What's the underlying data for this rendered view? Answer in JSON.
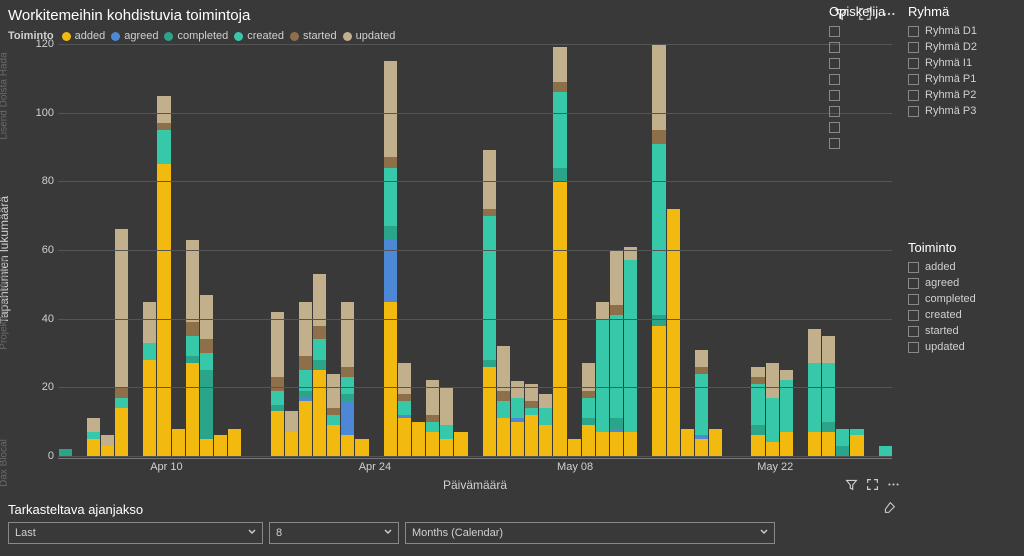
{
  "title": "Workitemeihin kohdistuvia toimintoja",
  "legend_label": "Toiminto",
  "series": [
    {
      "key": "added",
      "label": "added",
      "color": "#f2b90f"
    },
    {
      "key": "agreed",
      "label": "agreed",
      "color": "#4d88d6"
    },
    {
      "key": "completed",
      "label": "completed",
      "color": "#2aa58a"
    },
    {
      "key": "created",
      "label": "created",
      "color": "#37c8a9"
    },
    {
      "key": "started",
      "label": "started",
      "color": "#8d6f4a"
    },
    {
      "key": "updated",
      "label": "updated",
      "color": "#c2af8c"
    }
  ],
  "colors": {
    "background": "#393939",
    "grid": "#555555",
    "text": "#d0d0d0"
  },
  "y_axis": {
    "title": "Tapahtumien lukumäärä",
    "min": 0,
    "max": 120,
    "ticks": [
      0,
      20,
      40,
      60,
      80,
      100,
      120
    ]
  },
  "x_axis": {
    "title": "Päivämäärä",
    "tick_labels": [
      "Apr 10",
      "Apr 24",
      "May 08",
      "May 22"
    ],
    "tick_positions_pct": [
      13,
      38,
      62,
      86
    ]
  },
  "side_labels": [
    {
      "text": "Lisend Dolsta Hada",
      "top_pct": 12
    },
    {
      "text": "Projektoimia Mukene",
      "top_pct": 60
    },
    {
      "text": "Dax Blocal",
      "top_pct": 97
    }
  ],
  "side_markers": [
    "F",
    "I",
    "D"
  ],
  "bars": [
    {
      "added": 0,
      "agreed": 0,
      "completed": 2,
      "created": 0,
      "started": 0,
      "updated": 0
    },
    {
      "added": 0,
      "agreed": 0,
      "completed": 0,
      "created": 0,
      "started": 0,
      "updated": 0
    },
    {
      "added": 5,
      "agreed": 0,
      "completed": 0,
      "created": 2,
      "started": 0,
      "updated": 4
    },
    {
      "added": 3,
      "agreed": 0,
      "completed": 0,
      "created": 0,
      "started": 0,
      "updated": 3
    },
    {
      "added": 14,
      "agreed": 0,
      "completed": 0,
      "created": 3,
      "started": 3,
      "updated": 46
    },
    {
      "added": 0,
      "agreed": 0,
      "completed": 0,
      "created": 0,
      "started": 0,
      "updated": 0
    },
    {
      "added": 28,
      "agreed": 0,
      "completed": 0,
      "created": 5,
      "started": 0,
      "updated": 12
    },
    {
      "added": 85,
      "agreed": 0,
      "completed": 0,
      "created": 10,
      "started": 2,
      "updated": 8
    },
    {
      "added": 8,
      "agreed": 0,
      "completed": 0,
      "created": 0,
      "started": 0,
      "updated": 0
    },
    {
      "added": 27,
      "agreed": 0,
      "completed": 2,
      "created": 6,
      "started": 4,
      "updated": 24
    },
    {
      "added": 5,
      "agreed": 0,
      "completed": 20,
      "created": 5,
      "started": 4,
      "updated": 13
    },
    {
      "added": 6,
      "agreed": 0,
      "completed": 0,
      "created": 0,
      "started": 0,
      "updated": 0
    },
    {
      "added": 8,
      "agreed": 0,
      "completed": 0,
      "created": 0,
      "started": 0,
      "updated": 0
    },
    {
      "added": 0,
      "agreed": 0,
      "completed": 0,
      "created": 0,
      "started": 0,
      "updated": 0
    },
    {
      "added": 0,
      "agreed": 0,
      "completed": 0,
      "created": 0,
      "started": 0,
      "updated": 0
    },
    {
      "added": 13,
      "agreed": 0,
      "completed": 2,
      "created": 4,
      "started": 4,
      "updated": 19
    },
    {
      "added": 7,
      "agreed": 0,
      "completed": 0,
      "created": 0,
      "started": 0,
      "updated": 6
    },
    {
      "added": 16,
      "agreed": 1,
      "completed": 2,
      "created": 6,
      "started": 4,
      "updated": 16
    },
    {
      "added": 25,
      "agreed": 0,
      "completed": 3,
      "created": 6,
      "started": 4,
      "updated": 15
    },
    {
      "added": 9,
      "agreed": 0,
      "completed": 0,
      "created": 3,
      "started": 2,
      "updated": 10
    },
    {
      "added": 6,
      "agreed": 10,
      "completed": 2,
      "created": 5,
      "started": 3,
      "updated": 19
    },
    {
      "added": 5,
      "agreed": 0,
      "completed": 0,
      "created": 0,
      "started": 0,
      "updated": 0
    },
    {
      "added": 0,
      "agreed": 0,
      "completed": 0,
      "created": 0,
      "started": 0,
      "updated": 0
    },
    {
      "added": 45,
      "agreed": 18,
      "completed": 4,
      "created": 17,
      "started": 3,
      "updated": 28
    },
    {
      "added": 11,
      "agreed": 1,
      "completed": 0,
      "created": 4,
      "started": 2,
      "updated": 9
    },
    {
      "added": 10,
      "agreed": 0,
      "completed": 0,
      "created": 0,
      "started": 0,
      "updated": 0
    },
    {
      "added": 7,
      "agreed": 0,
      "completed": 0,
      "created": 3,
      "started": 2,
      "updated": 10
    },
    {
      "added": 5,
      "agreed": 0,
      "completed": 0,
      "created": 4,
      "started": 0,
      "updated": 11
    },
    {
      "added": 7,
      "agreed": 0,
      "completed": 0,
      "created": 0,
      "started": 0,
      "updated": 0
    },
    {
      "added": 0,
      "agreed": 0,
      "completed": 0,
      "created": 0,
      "started": 0,
      "updated": 0
    },
    {
      "added": 26,
      "agreed": 0,
      "completed": 2,
      "created": 42,
      "started": 2,
      "updated": 17
    },
    {
      "added": 11,
      "agreed": 0,
      "completed": 0,
      "created": 5,
      "started": 3,
      "updated": 13
    },
    {
      "added": 10,
      "agreed": 1,
      "completed": 0,
      "created": 6,
      "started": 0,
      "updated": 5
    },
    {
      "added": 12,
      "agreed": 0,
      "completed": 0,
      "created": 2,
      "started": 2,
      "updated": 5
    },
    {
      "added": 9,
      "agreed": 0,
      "completed": 0,
      "created": 5,
      "started": 0,
      "updated": 4
    },
    {
      "added": 80,
      "agreed": 0,
      "completed": 4,
      "created": 22,
      "started": 3,
      "updated": 10
    },
    {
      "added": 5,
      "agreed": 0,
      "completed": 0,
      "created": 0,
      "started": 0,
      "updated": 0
    },
    {
      "added": 9,
      "agreed": 0,
      "completed": 2,
      "created": 6,
      "started": 2,
      "updated": 8
    },
    {
      "added": 7,
      "agreed": 0,
      "completed": 0,
      "created": 33,
      "started": 0,
      "updated": 5
    },
    {
      "added": 7,
      "agreed": 1,
      "completed": 3,
      "created": 30,
      "started": 3,
      "updated": 16
    },
    {
      "added": 7,
      "agreed": 0,
      "completed": 0,
      "created": 50,
      "started": 0,
      "updated": 4
    },
    {
      "added": 0,
      "agreed": 0,
      "completed": 0,
      "created": 0,
      "started": 0,
      "updated": 0
    },
    {
      "added": 38,
      "agreed": 0,
      "completed": 3,
      "created": 50,
      "started": 4,
      "updated": 25
    },
    {
      "added": 72,
      "agreed": 0,
      "completed": 0,
      "created": 0,
      "started": 0,
      "updated": 0
    },
    {
      "added": 8,
      "agreed": 0,
      "completed": 0,
      "created": 0,
      "started": 0,
      "updated": 0
    },
    {
      "added": 5,
      "agreed": 1,
      "completed": 0,
      "created": 18,
      "started": 2,
      "updated": 5
    },
    {
      "added": 8,
      "agreed": 0,
      "completed": 0,
      "created": 0,
      "started": 0,
      "updated": 0
    },
    {
      "added": 0,
      "agreed": 0,
      "completed": 0,
      "created": 0,
      "started": 0,
      "updated": 0
    },
    {
      "added": 0,
      "agreed": 0,
      "completed": 0,
      "created": 0,
      "started": 0,
      "updated": 0
    },
    {
      "added": 6,
      "agreed": 0,
      "completed": 3,
      "created": 12,
      "started": 2,
      "updated": 3
    },
    {
      "added": 4,
      "agreed": 0,
      "completed": 0,
      "created": 13,
      "started": 0,
      "updated": 10
    },
    {
      "added": 7,
      "agreed": 0,
      "completed": 0,
      "created": 15,
      "started": 0,
      "updated": 3
    },
    {
      "added": 0,
      "agreed": 0,
      "completed": 0,
      "created": 0,
      "started": 0,
      "updated": 0
    },
    {
      "added": 7,
      "agreed": 0,
      "completed": 0,
      "created": 20,
      "started": 0,
      "updated": 10
    },
    {
      "added": 7,
      "agreed": 0,
      "completed": 3,
      "created": 17,
      "started": 0,
      "updated": 8
    },
    {
      "added": 0,
      "agreed": 0,
      "completed": 3,
      "created": 5,
      "started": 0,
      "updated": 0
    },
    {
      "added": 6,
      "agreed": 0,
      "completed": 0,
      "created": 2,
      "started": 0,
      "updated": 0
    },
    {
      "added": 0,
      "agreed": 0,
      "completed": 0,
      "created": 0,
      "started": 0,
      "updated": 0
    },
    {
      "added": 0,
      "agreed": 0,
      "completed": 0,
      "created": 3,
      "started": 0,
      "updated": 0
    }
  ],
  "slicers": {
    "opiskelija": {
      "title": "Opiskelija",
      "items": [
        "",
        "",
        "",
        "",
        "",
        "",
        "",
        ""
      ]
    },
    "ryhma": {
      "title": "Ryhmä",
      "items": [
        "Ryhmä D1",
        "Ryhmä D2",
        "Ryhmä I1",
        "Ryhmä P1",
        "Ryhmä P2",
        "Ryhmä P3"
      ]
    },
    "toiminto": {
      "title": "Toiminto",
      "items": [
        "added",
        "agreed",
        "completed",
        "created",
        "started",
        "updated"
      ]
    }
  },
  "bottom": {
    "title": "Tarkasteltava ajanjakso",
    "mode": "Last",
    "count": "8",
    "unit": "Months (Calendar)"
  }
}
